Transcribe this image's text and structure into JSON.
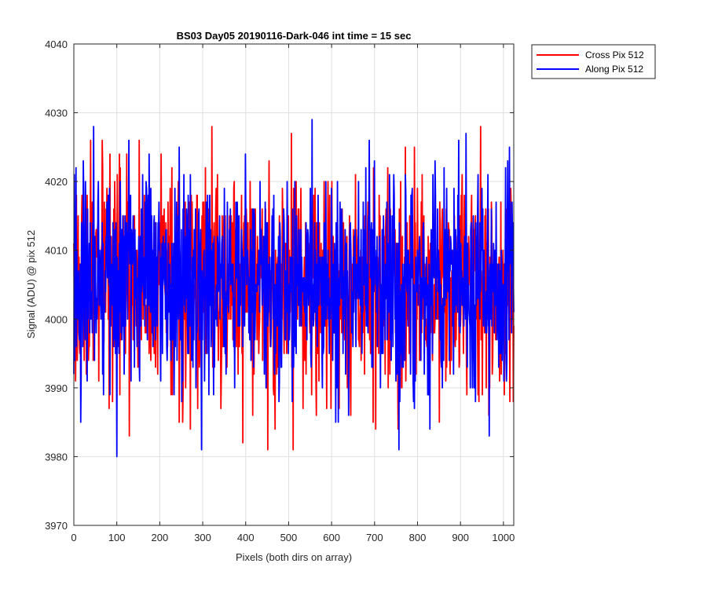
{
  "chart_data": {
    "type": "line",
    "title": "BS03 Day05 20190116-Dark-046 int time = 15 sec",
    "xlabel": "Pixels (both dirs on array)",
    "ylabel": "Signal (ADU) @ pix 512",
    "xlim": [
      0,
      1024
    ],
    "ylim": [
      3970,
      4040
    ],
    "xticks": [
      "0",
      "100",
      "200",
      "300",
      "400",
      "500",
      "600",
      "700",
      "800",
      "900",
      "1000"
    ],
    "yticks": [
      "3970",
      "3980",
      "3990",
      "4000",
      "4010",
      "4020",
      "4030",
      "4040"
    ],
    "grid": true,
    "legend_position": "outside-top-right",
    "series": [
      {
        "name": "Cross Pix 512",
        "color": "#ff0000",
        "noise": {
          "points": 1024,
          "mean": 4005,
          "sd": 8,
          "min": 3977,
          "max": 4033,
          "seed": 17
        }
      },
      {
        "name": "Along Pix 512",
        "color": "#0000ff",
        "noise": {
          "points": 1024,
          "mean": 4005,
          "sd": 8,
          "min": 3975,
          "max": 4035,
          "seed": 91
        }
      }
    ]
  }
}
